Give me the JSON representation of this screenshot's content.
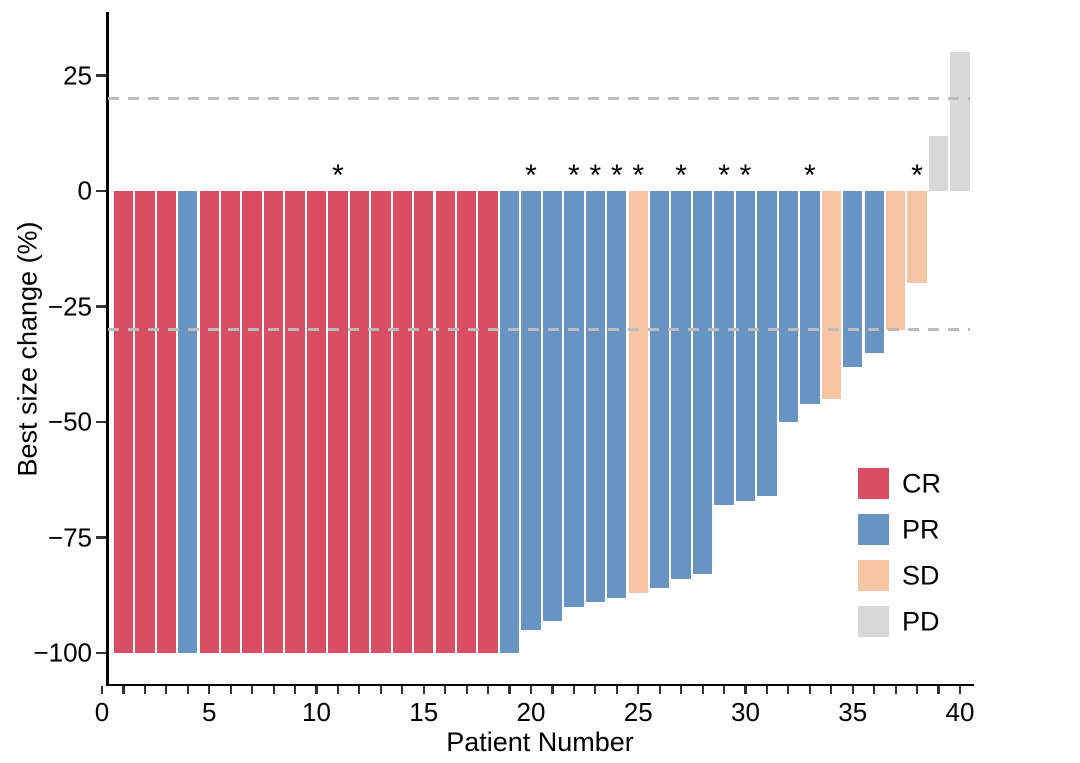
{
  "figure": {
    "xlabel": "Patient Number",
    "ylabel": "Best size change (%)",
    "asterisk_symbol": "*"
  },
  "legend": {
    "items": [
      {
        "label": "CR",
        "color": "#d94e63"
      },
      {
        "label": "PR",
        "color": "#6894c4"
      },
      {
        "label": "SD",
        "color": "#f8c5a4"
      },
      {
        "label": "PD",
        "color": "#d8d8d8"
      }
    ]
  },
  "chart_data": {
    "type": "bar",
    "title": "",
    "xlabel": "Patient Number",
    "ylabel": "Best size change (%)",
    "xlim": [
      0,
      40
    ],
    "ylim": [
      -108,
      38
    ],
    "grid": false,
    "legend_position": "inside-right",
    "reference_lines": [
      20,
      -30
    ],
    "reference_line_color": "#bcbcbc",
    "x_ticks_minor_every": 1,
    "x_tick_labels": [
      0,
      5,
      10,
      15,
      20,
      25,
      30,
      35,
      40
    ],
    "y_tick_values": [
      25,
      0,
      -25,
      -50,
      -75,
      -100
    ],
    "y_tick_labels": [
      "25",
      "0",
      "−25",
      "−50",
      "−75",
      "−100"
    ],
    "response_colors": {
      "CR": "#d94e63",
      "PR": "#6894c4",
      "SD": "#f8c5a4",
      "PD": "#d8d8d8"
    },
    "patients": [
      {
        "patient": 1,
        "value": -100,
        "response": "CR",
        "star": false
      },
      {
        "patient": 2,
        "value": -100,
        "response": "CR",
        "star": false
      },
      {
        "patient": 3,
        "value": -100,
        "response": "CR",
        "star": false
      },
      {
        "patient": 4,
        "value": -100,
        "response": "PR",
        "star": false
      },
      {
        "patient": 5,
        "value": -100,
        "response": "CR",
        "star": false
      },
      {
        "patient": 6,
        "value": -100,
        "response": "CR",
        "star": false
      },
      {
        "patient": 7,
        "value": -100,
        "response": "CR",
        "star": false
      },
      {
        "patient": 8,
        "value": -100,
        "response": "CR",
        "star": false
      },
      {
        "patient": 9,
        "value": -100,
        "response": "CR",
        "star": false
      },
      {
        "patient": 10,
        "value": -100,
        "response": "CR",
        "star": false
      },
      {
        "patient": 11,
        "value": -100,
        "response": "CR",
        "star": true
      },
      {
        "patient": 12,
        "value": -100,
        "response": "CR",
        "star": false
      },
      {
        "patient": 13,
        "value": -100,
        "response": "CR",
        "star": false
      },
      {
        "patient": 14,
        "value": -100,
        "response": "CR",
        "star": false
      },
      {
        "patient": 15,
        "value": -100,
        "response": "CR",
        "star": false
      },
      {
        "patient": 16,
        "value": -100,
        "response": "CR",
        "star": false
      },
      {
        "patient": 17,
        "value": -100,
        "response": "CR",
        "star": false
      },
      {
        "patient": 18,
        "value": -100,
        "response": "CR",
        "star": false
      },
      {
        "patient": 19,
        "value": -100,
        "response": "PR",
        "star": false
      },
      {
        "patient": 20,
        "value": -95,
        "response": "PR",
        "star": true
      },
      {
        "patient": 21,
        "value": -93,
        "response": "PR",
        "star": false
      },
      {
        "patient": 22,
        "value": -90,
        "response": "PR",
        "star": true
      },
      {
        "patient": 23,
        "value": -89,
        "response": "PR",
        "star": true
      },
      {
        "patient": 24,
        "value": -88,
        "response": "PR",
        "star": true
      },
      {
        "patient": 25,
        "value": -87,
        "response": "SD",
        "star": true
      },
      {
        "patient": 26,
        "value": -86,
        "response": "PR",
        "star": false
      },
      {
        "patient": 27,
        "value": -84,
        "response": "PR",
        "star": true
      },
      {
        "patient": 28,
        "value": -83,
        "response": "PR",
        "star": false
      },
      {
        "patient": 29,
        "value": -68,
        "response": "PR",
        "star": true
      },
      {
        "patient": 30,
        "value": -67,
        "response": "PR",
        "star": true
      },
      {
        "patient": 31,
        "value": -66,
        "response": "PR",
        "star": false
      },
      {
        "patient": 32,
        "value": -50,
        "response": "PR",
        "star": false
      },
      {
        "patient": 33,
        "value": -46,
        "response": "PR",
        "star": true
      },
      {
        "patient": 34,
        "value": -45,
        "response": "SD",
        "star": false
      },
      {
        "patient": 35,
        "value": -38,
        "response": "PR",
        "star": false
      },
      {
        "patient": 36,
        "value": -35,
        "response": "PR",
        "star": false
      },
      {
        "patient": 37,
        "value": -30,
        "response": "SD",
        "star": false
      },
      {
        "patient": 38,
        "value": -20,
        "response": "SD",
        "star": true
      },
      {
        "patient": 39,
        "value": 12,
        "response": "PD",
        "star": false
      },
      {
        "patient": 40,
        "value": 30,
        "response": "PD",
        "star": false
      }
    ]
  }
}
